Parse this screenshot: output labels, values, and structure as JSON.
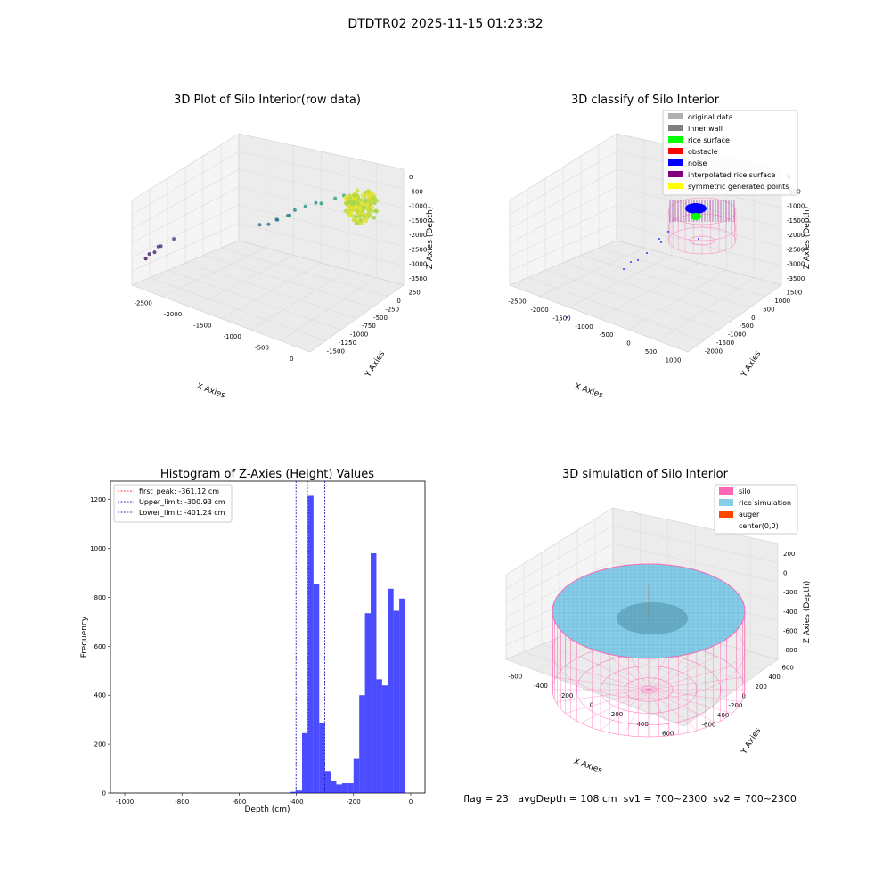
{
  "figure_title": "DTDTR02 2025-11-15 01:23:32",
  "status_line": "flag = 23   avgDepth = 108 cm  sv1 = 700~2300  sv2 = 700~2300",
  "colors": {
    "silo": "#ff69b4",
    "rice_simulation": "#87ceeb",
    "auger": "#ff4500",
    "histogram_bar": "#0000ff",
    "original_data": "#b0b0b0",
    "inner_wall": "#808080",
    "rice_surface": "#00ff00",
    "obstacle": "#ff0000",
    "noise": "#0000ff",
    "interpolated_rice_surface": "#800080",
    "symmetric_generated_points": "#ffff00"
  },
  "chart_data": [
    {
      "type": "scatter",
      "title": "3D Plot of Silo Interior(row data)",
      "xlabel": "X Axies",
      "ylabel": "Y Axies",
      "zlabel": "Z Axies (Depth)",
      "x_ticks": [
        "-2500",
        "-2000",
        "-1500",
        "-1000",
        "-500",
        "0"
      ],
      "y_ticks": [
        "250",
        "0",
        "-250",
        "-500",
        "-750",
        "-1000",
        "-1250",
        "-1500"
      ],
      "z_ticks": [
        "0",
        "-500",
        "-1000",
        "-1500",
        "-2000",
        "-2500",
        "-3000",
        "-3500"
      ],
      "xlim": [
        -2700,
        200
      ],
      "ylim": [
        -1600,
        350
      ],
      "zlim": [
        -3700,
        100
      ],
      "colormap": "viridis (by depth)",
      "points": [
        {
          "x": -2600,
          "y": 150,
          "z": -3500
        },
        {
          "x": -2550,
          "y": 150,
          "z": -3350
        },
        {
          "x": -2500,
          "y": 100,
          "z": -3300
        },
        {
          "x": -2470,
          "y": 50,
          "z": -3150
        },
        {
          "x": -2420,
          "y": 80,
          "z": -3100
        },
        {
          "x": -2300,
          "y": -50,
          "z": -2900
        },
        {
          "x": -1400,
          "y": -700,
          "z": -2400
        },
        {
          "x": -1250,
          "y": -650,
          "z": -2300
        },
        {
          "x": -1200,
          "y": -780,
          "z": -2200
        },
        {
          "x": -1150,
          "y": -700,
          "z": -2150
        },
        {
          "x": -1100,
          "y": -900,
          "z": -2100
        },
        {
          "x": -1050,
          "y": -850,
          "z": -2050
        },
        {
          "x": -1000,
          "y": -900,
          "z": -1900
        },
        {
          "x": -900,
          "y": -1000,
          "z": -1800
        },
        {
          "x": -800,
          "y": -1100,
          "z": -1700
        },
        {
          "x": -700,
          "y": -1050,
          "z": -1650
        },
        {
          "x": -600,
          "y": -1250,
          "z": -1550
        },
        {
          "x": -500,
          "y": -1300,
          "z": -1450
        },
        {
          "x": -300,
          "y": -1450,
          "z": -1600
        }
      ],
      "cluster": {
        "x_range": [
          -400,
          0
        ],
        "y_range": [
          -1500,
          -1200
        ],
        "z_range": [
          -1200,
          -300
        ],
        "note": "dense rice surface points"
      }
    },
    {
      "type": "scatter",
      "title": "3D classify of Silo Interior",
      "xlabel": "X Axies",
      "ylabel": "Y Axies",
      "zlabel": "Z Axies (Depth)",
      "x_ticks": [
        "-2500",
        "-2000",
        "-1500",
        "-1000",
        "-500",
        "0",
        "500",
        "1000"
      ],
      "y_ticks": [
        "1500",
        "1000",
        "500",
        "0",
        "-500",
        "-1000",
        "-1500",
        "-2000"
      ],
      "z_ticks": [
        "0",
        "-500",
        "-1000",
        "-1500",
        "-2000",
        "-2500",
        "-3000",
        "-3500"
      ],
      "xlim": [
        -2700,
        1100
      ],
      "ylim": [
        -2100,
        1600
      ],
      "zlim": [
        -3700,
        100
      ],
      "legend": [
        "original data",
        "inner wall",
        "rice surface",
        "obstacle",
        "noise",
        "interpolated rice surface",
        "symmetric generated points"
      ],
      "legend_placement": "top-right"
    },
    {
      "type": "bar",
      "title": "Histogram of Z-Axies (Height) Values",
      "xlabel": "Depth (cm)",
      "ylabel": "Frequency",
      "x_ticks": [
        -1000,
        -800,
        -600,
        -400,
        -200,
        0
      ],
      "y_ticks": [
        0,
        200,
        400,
        600,
        800,
        1000,
        1200
      ],
      "xlim": [
        -1050,
        50
      ],
      "ylim": [
        0,
        1275
      ],
      "bin_width": 20,
      "bins": [
        {
          "x0": -420,
          "x1": -400,
          "value": 5
        },
        {
          "x0": -400,
          "x1": -380,
          "value": 10
        },
        {
          "x0": -380,
          "x1": -360,
          "value": 245
        },
        {
          "x0": -360,
          "x1": -340,
          "value": 1215
        },
        {
          "x0": -340,
          "x1": -320,
          "value": 855
        },
        {
          "x0": -320,
          "x1": -300,
          "value": 285
        },
        {
          "x0": -300,
          "x1": -280,
          "value": 90
        },
        {
          "x0": -280,
          "x1": -260,
          "value": 50
        },
        {
          "x0": -260,
          "x1": -240,
          "value": 35
        },
        {
          "x0": -240,
          "x1": -220,
          "value": 40
        },
        {
          "x0": -220,
          "x1": -200,
          "value": 40
        },
        {
          "x0": -200,
          "x1": -180,
          "value": 140
        },
        {
          "x0": -180,
          "x1": -160,
          "value": 400
        },
        {
          "x0": -160,
          "x1": -140,
          "value": 735
        },
        {
          "x0": -140,
          "x1": -120,
          "value": 980
        },
        {
          "x0": -120,
          "x1": -100,
          "value": 465
        },
        {
          "x0": -100,
          "x1": -80,
          "value": 440
        },
        {
          "x0": -80,
          "x1": -60,
          "value": 835
        },
        {
          "x0": -60,
          "x1": -40,
          "value": 745
        },
        {
          "x0": -40,
          "x1": -20,
          "value": 795
        }
      ],
      "vlines": [
        {
          "label": "first_peak: -361.12 cm",
          "x": -361.12,
          "color": "#ff0000"
        },
        {
          "label": "Upper_limit: -300.93 cm",
          "x": -300.93,
          "color": "#0000aa"
        },
        {
          "label": "Lower_limit: -401.24 cm",
          "x": -401.24,
          "color": "#0000aa"
        }
      ],
      "legend_placement": "top-left"
    },
    {
      "type": "area",
      "title": "3D simulation of Silo Interior",
      "xlabel": "X Axies",
      "ylabel": "Y Axies",
      "zlabel": "Z Axies (Depth)",
      "x_ticks": [
        "-600",
        "-400",
        "-200",
        "0",
        "200",
        "400",
        "600"
      ],
      "y_ticks": [
        "600",
        "400",
        "200",
        "0",
        "-200",
        "-400",
        "-600"
      ],
      "z_ticks": [
        "200",
        "0",
        "-200",
        "-400",
        "-600",
        "-800"
      ],
      "xlim": [
        -700,
        700
      ],
      "ylim": [
        -700,
        700
      ],
      "zlim": [
        -900,
        300
      ],
      "legend": [
        "silo",
        "rice simulation",
        "auger",
        "center(0,0)"
      ],
      "legend_placement": "top-right"
    }
  ]
}
